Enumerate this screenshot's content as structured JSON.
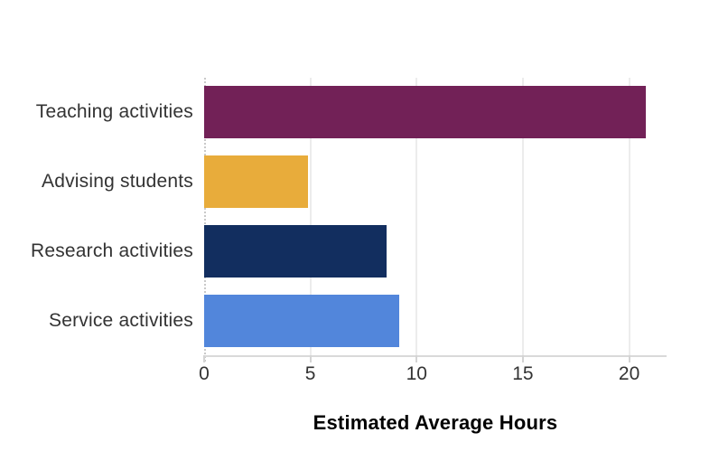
{
  "chart_data": {
    "type": "bar",
    "orientation": "horizontal",
    "title": "",
    "xlabel": "Estimated Average Hours",
    "ylabel": "",
    "categories": [
      "Teaching activities",
      "Advising students",
      "Research activities",
      "Service activities"
    ],
    "values": [
      20.8,
      4.9,
      8.6,
      9.2
    ],
    "bar_colors": [
      "#722157",
      "#E8AC3B",
      "#122E5F",
      "#5286DB"
    ],
    "xlim": [
      0,
      21.76
    ],
    "xticks": [
      0,
      5,
      10,
      15,
      20
    ],
    "grid": "vertical-gridlines-on",
    "zero_line_style": "dotted",
    "legend": "none",
    "colors": {
      "gridline": "#ececec",
      "axis_line": "#d9d9d9",
      "tick_label": "#333333",
      "category_label": "#333333",
      "axis_title": "#000000",
      "background": "#ffffff"
    }
  }
}
